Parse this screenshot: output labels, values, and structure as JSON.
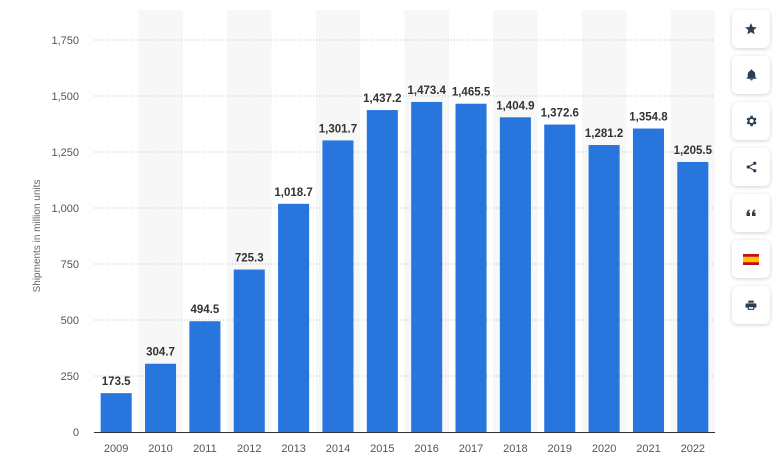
{
  "chart_data": {
    "type": "bar",
    "title": "",
    "xlabel": "",
    "ylabel": "Shipments in million units",
    "categories": [
      "2009",
      "2010",
      "2011",
      "2012",
      "2013",
      "2014",
      "2015",
      "2016",
      "2017",
      "2018",
      "2019",
      "2020",
      "2021",
      "2022"
    ],
    "values": [
      173.5,
      304.7,
      494.5,
      725.3,
      1018.7,
      1301.7,
      1437.2,
      1473.4,
      1465.5,
      1404.9,
      1372.6,
      1281.2,
      1354.8,
      1205.5
    ],
    "value_labels": [
      "173.5",
      "304.7",
      "494.5",
      "725.3",
      "1,018.7",
      "1,301.7",
      "1,437.2",
      "1,473.4",
      "1,465.5",
      "1,404.9",
      "1,372.6",
      "1,281.2",
      "1,354.8",
      "1,205.5"
    ],
    "ylim": [
      0,
      1750
    ],
    "yticks": [
      0,
      250,
      500,
      750,
      1000,
      1250,
      1500,
      1750
    ],
    "ytick_labels": [
      "0",
      "250",
      "500",
      "750",
      "1,000",
      "1,250",
      "1,500",
      "1,750"
    ],
    "grid": true,
    "bar_color": "#2876dd",
    "alternate_band_color": "#f7f7f7"
  },
  "toolbar": {
    "items": [
      {
        "name": "star-icon"
      },
      {
        "name": "bell-icon"
      },
      {
        "name": "gear-icon"
      },
      {
        "name": "share-icon"
      },
      {
        "name": "quote-icon"
      },
      {
        "name": "spain-flag-icon"
      },
      {
        "name": "print-icon"
      }
    ]
  }
}
